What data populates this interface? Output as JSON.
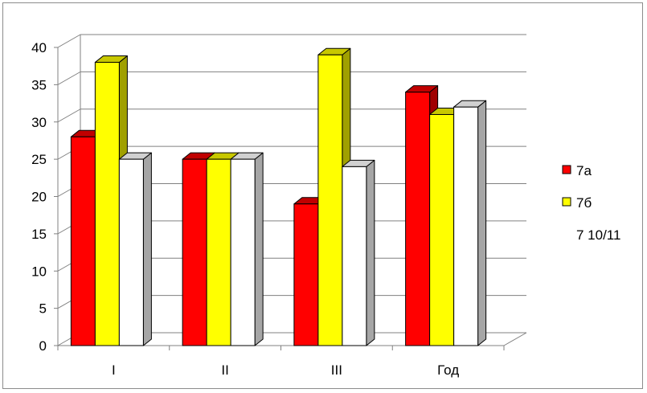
{
  "chart_data": {
    "type": "bar",
    "categories": [
      "I",
      "II",
      "III",
      "Год"
    ],
    "series": [
      {
        "name": "7а",
        "values": [
          28,
          25,
          19,
          34
        ],
        "color": "#ff0000",
        "side_color": "#a00000",
        "top_color": "#c00000"
      },
      {
        "name": "7б",
        "values": [
          38,
          25,
          39,
          31
        ],
        "color": "#ffff00",
        "side_color": "#a0a000",
        "top_color": "#c8c800"
      },
      {
        "name": "7 10/11",
        "values": [
          25,
          25,
          24,
          32
        ],
        "color": "#ffffff",
        "side_color": "#a6a6a6",
        "top_color": "#d0d0d0"
      }
    ],
    "yticks": [
      "0",
      "5",
      "10",
      "15",
      "20",
      "25",
      "30",
      "35",
      "40"
    ],
    "ylim": [
      0,
      40
    ],
    "grid": true,
    "legend_position": "right",
    "style": "3d-clustered-column"
  }
}
